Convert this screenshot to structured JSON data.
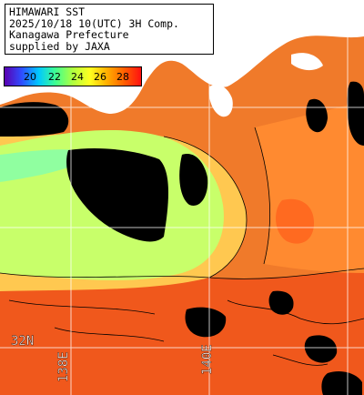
{
  "info": {
    "lines": [
      "HIMAWARI SST",
      "2025/10/18 10(UTC) 3H Comp.",
      "Kanagawa Prefecture",
      "supplied by JAXA"
    ]
  },
  "colorbar": {
    "ticks": [
      "20",
      "22",
      "24",
      "26",
      "28"
    ],
    "stops": [
      "#5a00b0",
      "#2f4cff",
      "#00c8ff",
      "#40ff90",
      "#b0ff40",
      "#ffff20",
      "#ffb000",
      "#ff6000",
      "#ff1010"
    ]
  },
  "grid_labels": {
    "lat_32": "32N",
    "lon_138": "138E",
    "lon_140": "140E"
  },
  "colors": {
    "land": "#ffffff",
    "cloud": "#000000",
    "warm": "#f07a2a",
    "hot": "#f0541a",
    "cool": "#c8ff6a",
    "mid": "#ffd050"
  }
}
